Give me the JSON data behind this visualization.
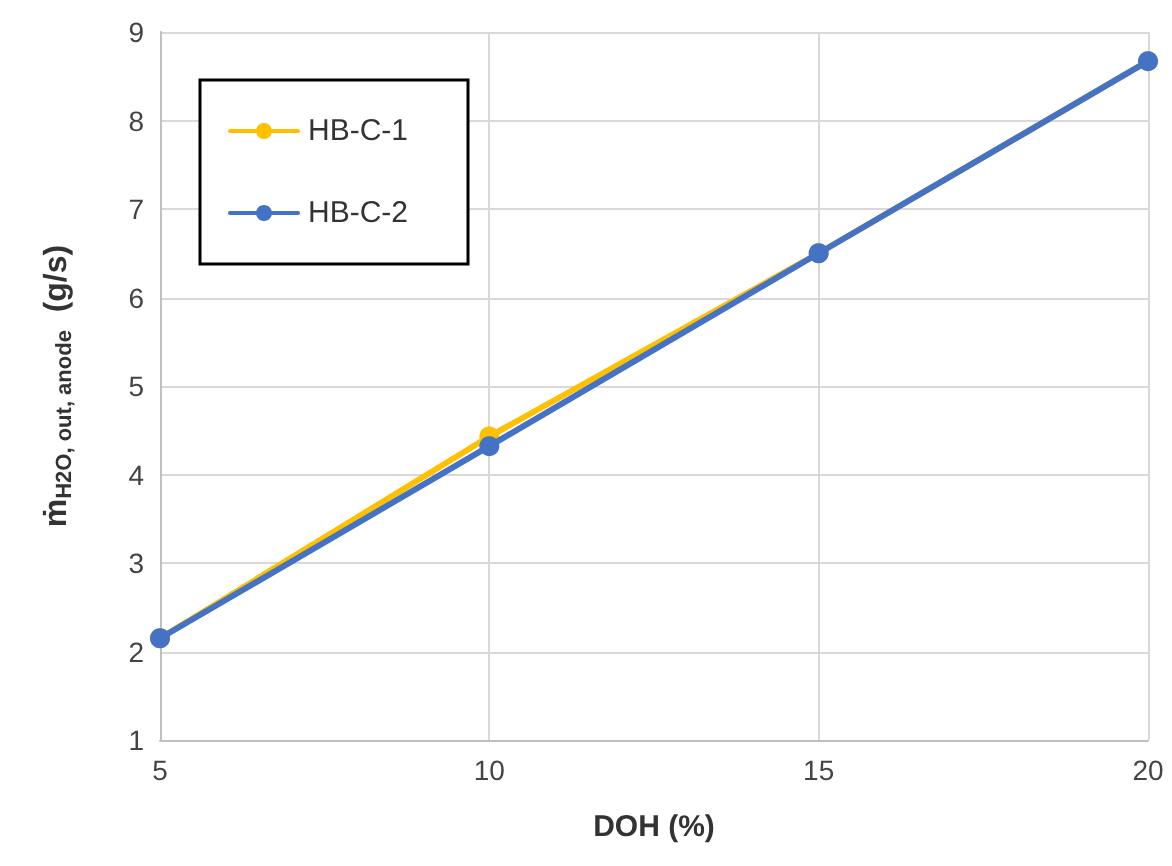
{
  "chart_data": {
    "type": "line",
    "xlabel": "DOH (%)",
    "ylabel": "ṁ$_{H2O, out, anode}$  (g/s)",
    "x": [
      5,
      10,
      15,
      20
    ],
    "series": [
      {
        "name": "HB-C-1",
        "color": "#ffc000",
        "values": [
          2.15,
          4.43,
          6.5,
          8.67
        ]
      },
      {
        "name": "HB-C-2",
        "color": "#4472c4",
        "values": [
          2.15,
          4.32,
          6.5,
          8.67
        ]
      }
    ],
    "xlim": [
      5,
      20
    ],
    "xticks": [
      5,
      10,
      15,
      20
    ],
    "ylim": [
      1,
      9
    ],
    "yticks": [
      1,
      2,
      3,
      4,
      5,
      6,
      7,
      8,
      9
    ],
    "grid": true,
    "legend": "top left",
    "marker": "circle",
    "line_style": "solid"
  }
}
